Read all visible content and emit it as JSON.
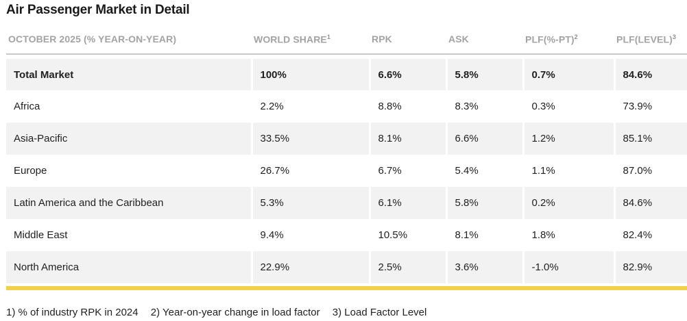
{
  "title": "Air Passenger Market in Detail",
  "headers": {
    "period": "OCTOBER 2025 (% YEAR-ON-YEAR)",
    "world_share": "WORLD SHARE",
    "world_share_sup": "1",
    "rpk": "RPK",
    "ask": "ASK",
    "plf_pt": "PLF(%-PT)",
    "plf_pt_sup": "2",
    "plf_level": "PLF(LEVEL)",
    "plf_level_sup": "3"
  },
  "rows": [
    {
      "region": "Total Market",
      "world_share": "100%",
      "rpk": "6.6%",
      "ask": "5.8%",
      "plf_pt": "0.7%",
      "plf_level": "84.6%"
    },
    {
      "region": "Africa",
      "world_share": "2.2%",
      "rpk": "8.8%",
      "ask": "8.3%",
      "plf_pt": "0.3%",
      "plf_level": "73.9%"
    },
    {
      "region": "Asia-Pacific",
      "world_share": "33.5%",
      "rpk": "8.1%",
      "ask": "6.6%",
      "plf_pt": "1.2%",
      "plf_level": "85.1%"
    },
    {
      "region": "Europe",
      "world_share": "26.7%",
      "rpk": "6.7%",
      "ask": "5.4%",
      "plf_pt": "1.1%",
      "plf_level": "87.0%"
    },
    {
      "region": "Latin America and the Caribbean",
      "world_share": "5.3%",
      "rpk": "6.1%",
      "ask": "5.8%",
      "plf_pt": "0.2%",
      "plf_level": "84.6%"
    },
    {
      "region": "Middle East",
      "world_share": "9.4%",
      "rpk": "10.5%",
      "ask": "8.1%",
      "plf_pt": "1.8%",
      "plf_level": "82.4%"
    },
    {
      "region": "North America",
      "world_share": "22.9%",
      "rpk": "2.5%",
      "ask": "3.6%",
      "plf_pt": "-1.0%",
      "plf_level": "82.9%"
    }
  ],
  "footnotes": [
    "1) % of industry RPK in 2024",
    "2) Year-on-year change in load factor",
    "3) Load Factor Level"
  ],
  "colors": {
    "accent_rule": "#f2d04a",
    "row_shade": "#f2f2f2",
    "header_text": "#a3a3a3"
  }
}
